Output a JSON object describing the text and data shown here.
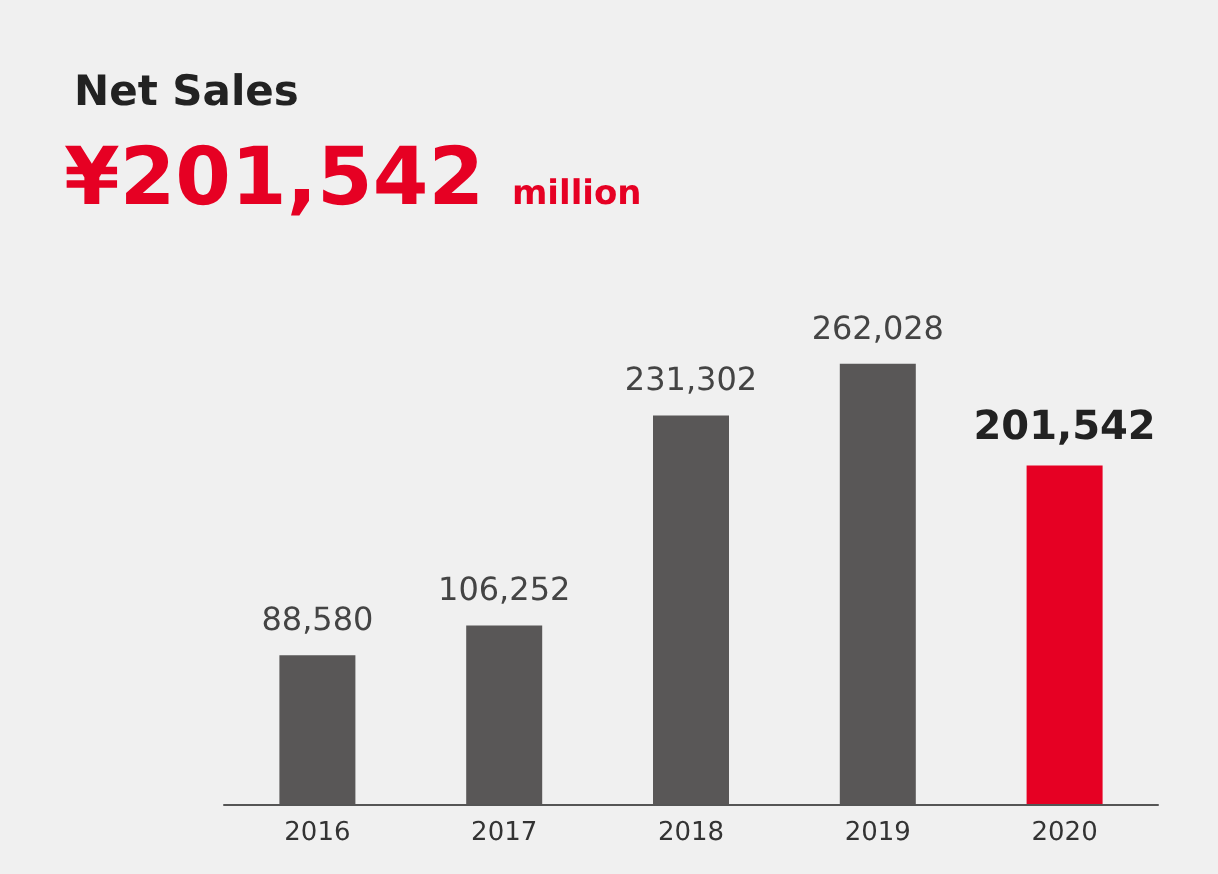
{
  "chart_data": {
    "type": "bar",
    "title": "Net Sales",
    "subtitle": "¥201,542 million",
    "categories": [
      "2016",
      "2017",
      "2018",
      "2019",
      "2020"
    ],
    "values": [
      88580,
      106252,
      231302,
      262028,
      201542
    ],
    "value_labels": [
      "88,580",
      "106,252",
      "231,302",
      "262,028",
      "201,542"
    ],
    "colors": [
      "#595757",
      "#595757",
      "#595757",
      "#595757",
      "#e60023"
    ]
  }
}
